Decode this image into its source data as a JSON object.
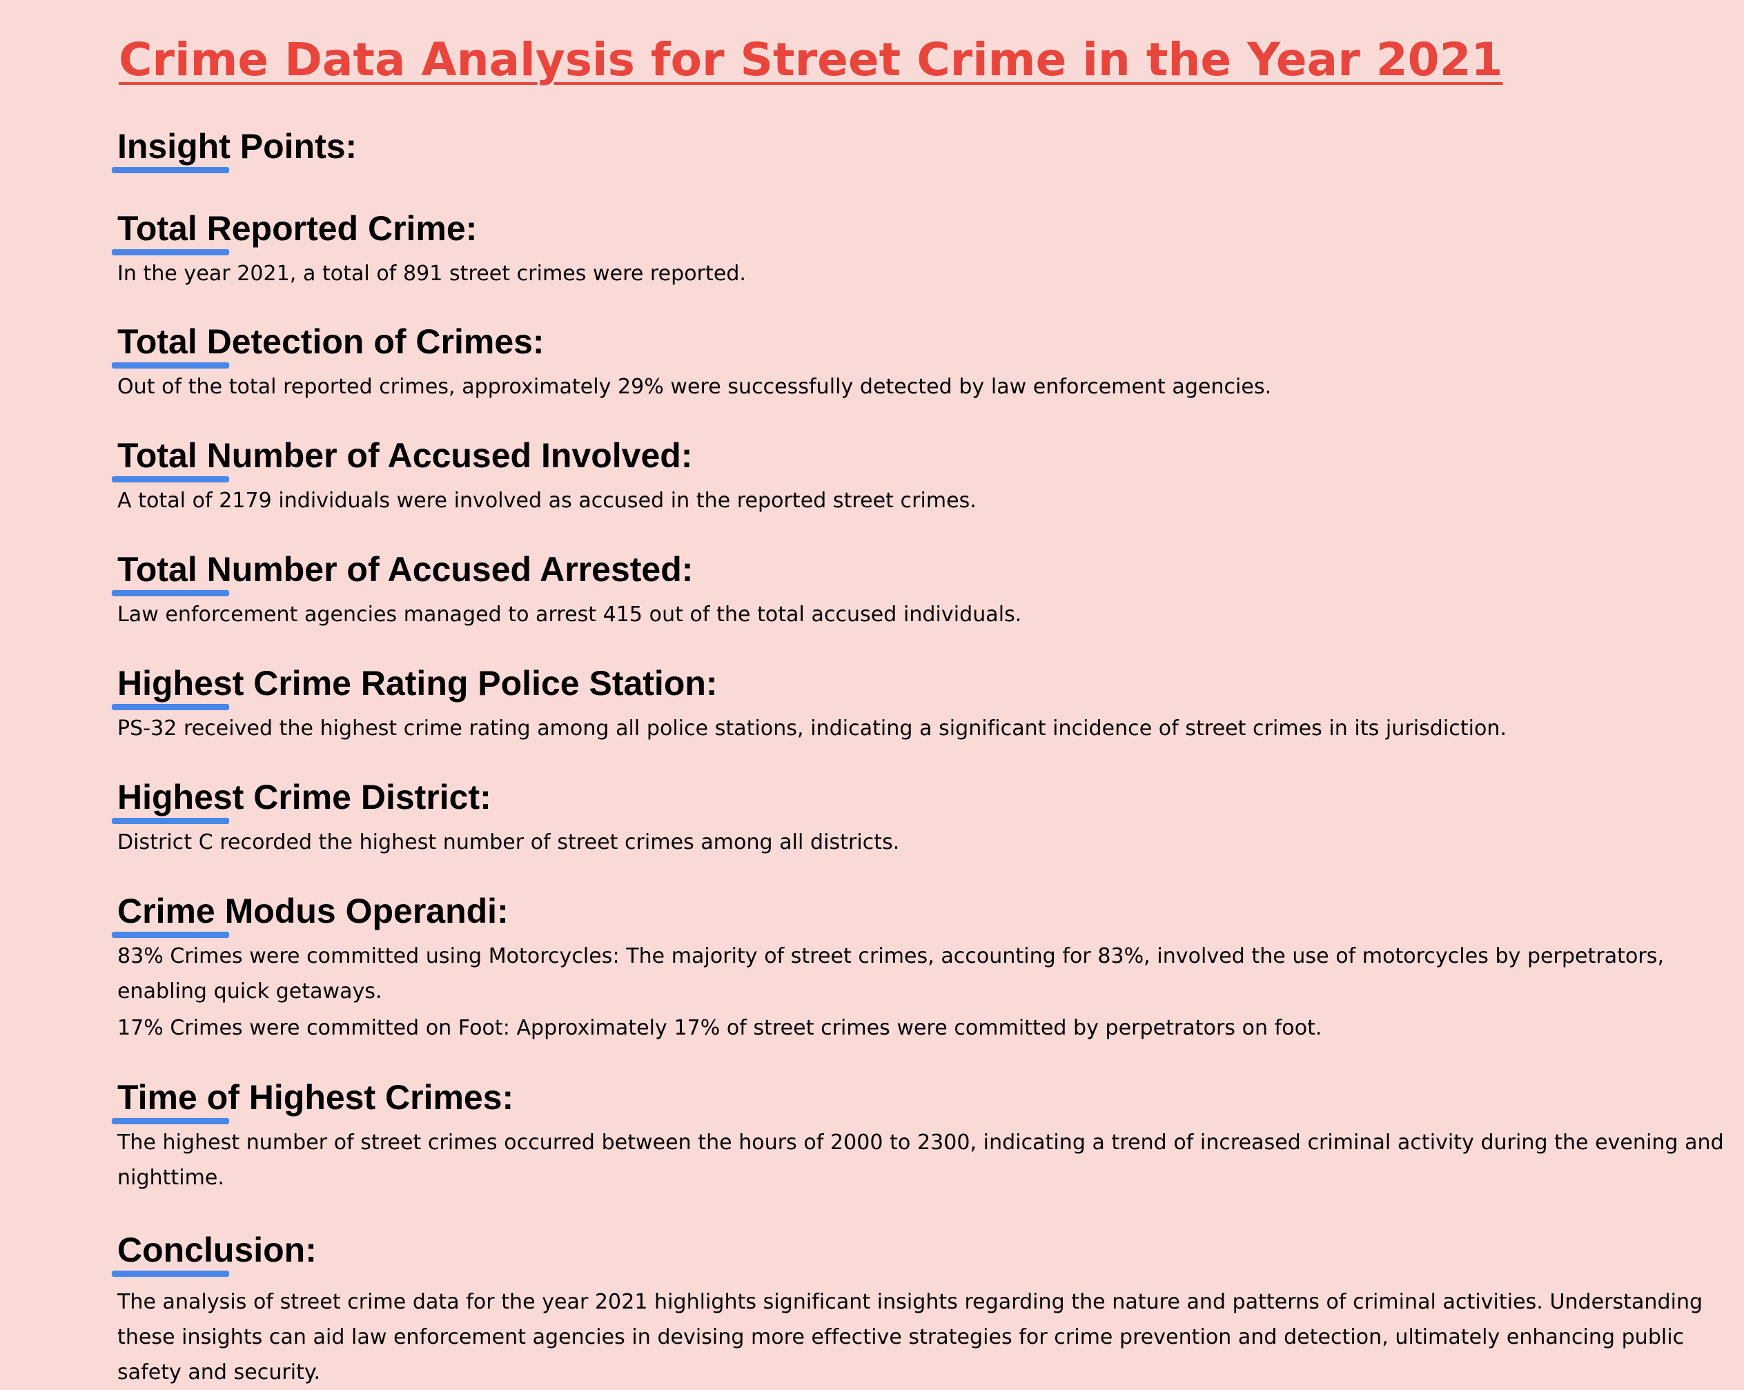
{
  "document": {
    "title": "Crime Data Analysis for Street Crime in the Year 2021",
    "insight_heading": "Insight Points:",
    "sections": [
      {
        "heading": "Total Reported Crime:",
        "paragraphs": [
          "In the year 2021, a total of 891 street crimes were reported."
        ]
      },
      {
        "heading": "Total Detection of Crimes:",
        "paragraphs": [
          "Out of the total reported crimes, approximately 29% were successfully detected by law enforcement agencies."
        ]
      },
      {
        "heading": "Total Number of Accused Involved:",
        "paragraphs": [
          "A total of 2179 individuals were involved as accused in the reported street crimes."
        ]
      },
      {
        "heading": "Total Number of Accused Arrested:",
        "paragraphs": [
          "Law enforcement agencies managed to arrest 415 out of the total accused individuals."
        ]
      },
      {
        "heading": "Highest Crime Rating Police Station:",
        "paragraphs": [
          "PS-32 received the highest crime rating among all police stations, indicating a significant incidence of street crimes in its jurisdiction."
        ]
      },
      {
        "heading": "Highest Crime District:",
        "paragraphs": [
          "District C recorded the highest number of street crimes among all districts."
        ]
      },
      {
        "heading": "Crime Modus Operandi:",
        "paragraphs": [
          "83% Crimes were committed using Motorcycles: The majority of street crimes, accounting for 83%, involved the use of motorcycles by perpetrators, enabling quick getaways.",
          "17% Crimes were committed on Foot: Approximately 17% of street crimes were committed by perpetrators on foot."
        ]
      },
      {
        "heading": "Time of Highest Crimes:",
        "paragraphs": [
          "The highest number of street crimes occurred between the hours of 2000 to 2300, indicating a trend of increased criminal activity during the evening and nighttime."
        ]
      },
      {
        "heading": "Conclusion:",
        "paragraphs": [
          "The analysis of street crime data for the year 2021 highlights significant insights regarding the nature and patterns of criminal activities. Understanding these insights can aid law enforcement agencies in devising more effective strategies for crime prevention and detection, ultimately enhancing public safety and security."
        ]
      }
    ]
  },
  "colors": {
    "background": "#f9dad7",
    "title": "#e8453c",
    "accent": "#4a86e8",
    "text": "#000000"
  }
}
